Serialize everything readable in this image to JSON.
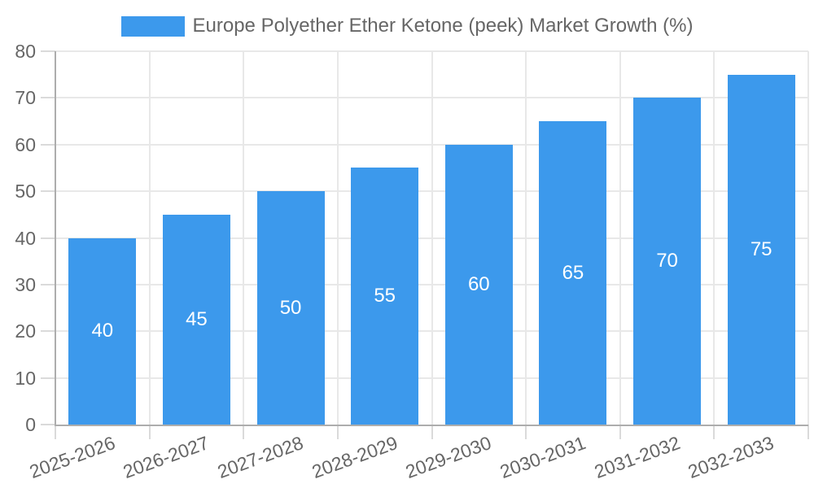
{
  "chart_data": {
    "type": "bar",
    "title": "Europe Polyether Ether Ketone (peek) Market Growth (%)",
    "categories": [
      "2025-2026",
      "2026-2027",
      "2027-2028",
      "2028-2029",
      "2029-2030",
      "2030-2031",
      "2031-2032",
      "2032-2033"
    ],
    "values": [
      40,
      45,
      50,
      55,
      60,
      65,
      70,
      75
    ],
    "xlabel": "",
    "ylabel": "",
    "ylim": [
      0,
      80
    ],
    "ytick_step": 10,
    "ytick_labels": [
      "0",
      "10",
      "20",
      "30",
      "40",
      "50",
      "60",
      "70",
      "80"
    ],
    "grid": true,
    "legend_position": "top",
    "colors": {
      "bar": "#3C99EC",
      "value_label": "#FFFFFF",
      "axis_text": "#666666",
      "grid_line": "#E8E8E8",
      "axis_border": "#ADADAD"
    }
  }
}
